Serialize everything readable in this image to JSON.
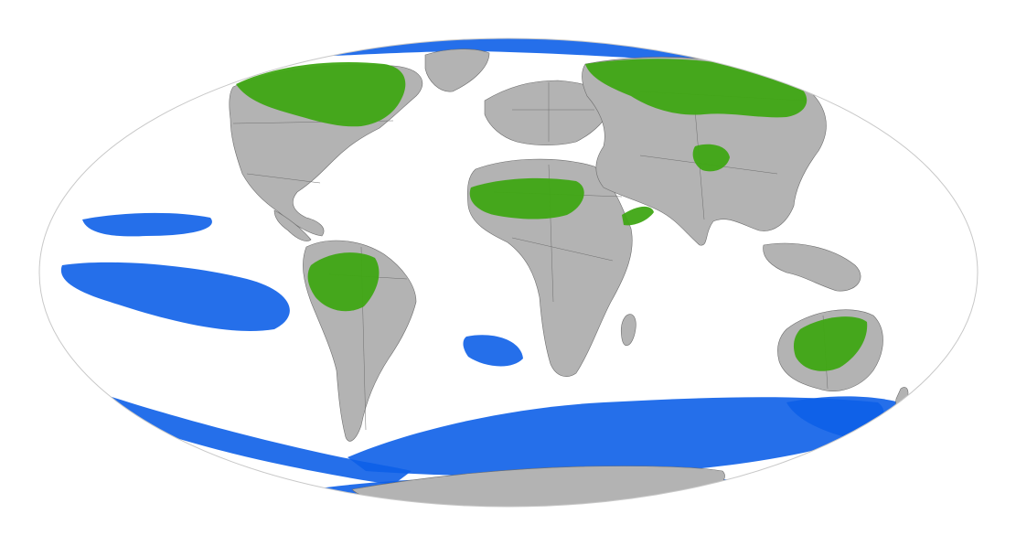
{
  "map": {
    "projection": "mollweide",
    "colors": {
      "background": "#ffffff",
      "ocean": "#ffffff",
      "land": "#b3b3b3",
      "border": "#6e6e6e",
      "outline": "#c8c8c8",
      "land_highlight": "#3fa614",
      "ocean_highlight": "#0d5fe8"
    },
    "legend": []
  }
}
